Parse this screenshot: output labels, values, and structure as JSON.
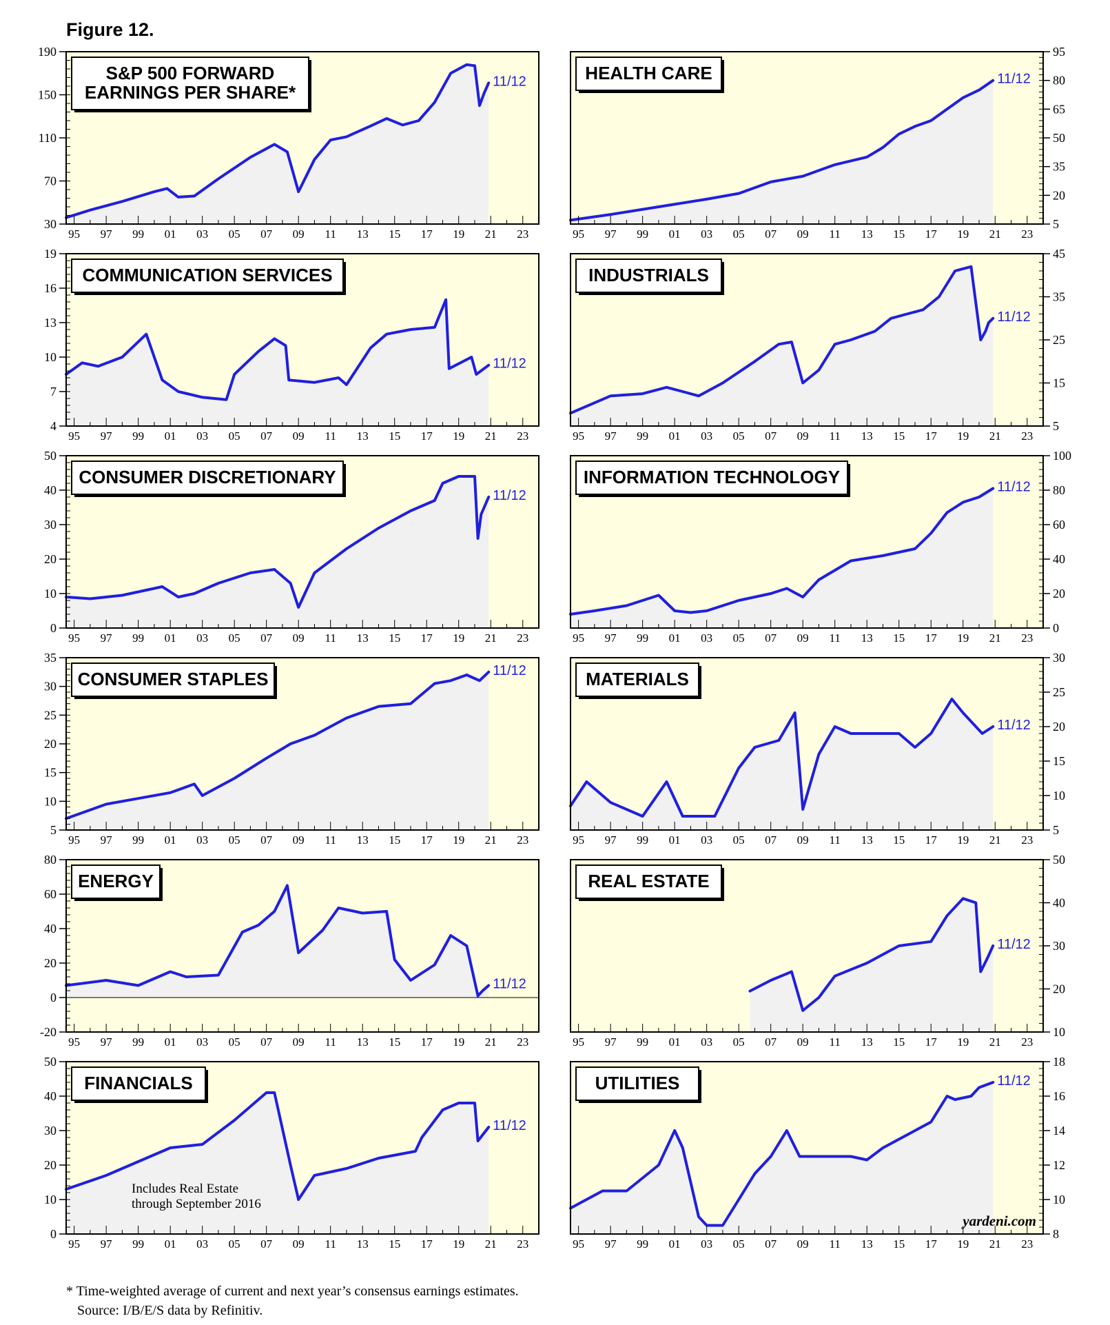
{
  "figure_label": "Figure 12.",
  "footnote": "* Time-weighted average of current and next year’s consensus earnings estimates.",
  "source": "Source: I/B/E/S data by Refinitiv.",
  "watermark": "yardeni.com",
  "colors": {
    "background": "#fffee0",
    "fill": "#f1f1f1",
    "line": "#1f1fe0",
    "label_text": "#1f1fe0"
  },
  "chart_data": [
    {
      "type": "line",
      "title": "S&P 500 FORWARD EARNINGS PER SHARE*",
      "title_lines": [
        "S&P 500 FORWARD",
        "EARNINGS PER SHARE*"
      ],
      "end_label": "11/12",
      "axis_side": "left",
      "ylim": [
        30,
        190
      ],
      "yticks": [
        "190",
        "150",
        "110",
        "70",
        "30"
      ],
      "xlim": [
        1994.5,
        2024
      ],
      "xticks": [
        "95",
        "97",
        "99",
        "01",
        "03",
        "05",
        "07",
        "09",
        "11",
        "13",
        "15",
        "17",
        "19",
        "21",
        "23"
      ],
      "x": [
        1994.5,
        1996,
        1998,
        2000,
        2000.8,
        2001.5,
        2002.5,
        2004,
        2006,
        2007.5,
        2008.3,
        2009,
        2010,
        2011,
        2012,
        2013.5,
        2014.5,
        2015.5,
        2016.5,
        2017.5,
        2018.5,
        2019.5,
        2020,
        2020.3,
        2020.6,
        2020.87
      ],
      "values": [
        36,
        43,
        51,
        60,
        63,
        55,
        56,
        72,
        92,
        104,
        97,
        60,
        90,
        108,
        111,
        121,
        128,
        122,
        126,
        143,
        170,
        178,
        177,
        140,
        152,
        161
      ]
    },
    {
      "type": "line",
      "title": "HEALTH CARE",
      "title_lines": [
        "HEALTH CARE"
      ],
      "end_label": "11/12",
      "axis_side": "right",
      "ylim": [
        5,
        95
      ],
      "yticks": [
        "95",
        "80",
        "65",
        "50",
        "35",
        "20",
        "5"
      ],
      "xlim": [
        1994.5,
        2024
      ],
      "xticks": [
        "95",
        "97",
        "99",
        "01",
        "03",
        "05",
        "07",
        "09",
        "11",
        "13",
        "15",
        "17",
        "19",
        "21",
        "23"
      ],
      "x": [
        1994.5,
        1997,
        2000,
        2003,
        2005,
        2007,
        2009,
        2011,
        2013,
        2014,
        2015,
        2016,
        2017,
        2018,
        2019,
        2020,
        2020.87
      ],
      "values": [
        7,
        10,
        14,
        18,
        21,
        27,
        30,
        36,
        40,
        45,
        52,
        56,
        59,
        65,
        71,
        75,
        80
      ]
    },
    {
      "type": "line",
      "title": "COMMUNICATION SERVICES",
      "title_lines": [
        "COMMUNICATION SERVICES"
      ],
      "end_label": "11/12",
      "axis_side": "left",
      "ylim": [
        4,
        19
      ],
      "yticks": [
        "19",
        "16",
        "13",
        "10",
        "7",
        "4"
      ],
      "xlim": [
        1994.5,
        2024
      ],
      "xticks": [
        "95",
        "97",
        "99",
        "01",
        "03",
        "05",
        "07",
        "09",
        "11",
        "13",
        "15",
        "17",
        "19",
        "21",
        "23"
      ],
      "x": [
        1994.5,
        1995.5,
        1996.5,
        1998,
        1999.5,
        2000.5,
        2001.5,
        2003,
        2004.5,
        2005,
        2006.5,
        2007.5,
        2008.2,
        2008.4,
        2010,
        2011.5,
        2012,
        2013.5,
        2014.5,
        2016,
        2017.5,
        2018.2,
        2018.4,
        2019.8,
        2020.1,
        2020.87
      ],
      "values": [
        8.5,
        9.5,
        9.2,
        10,
        12,
        8,
        7,
        6.5,
        6.3,
        8.5,
        10.5,
        11.6,
        11,
        8,
        7.8,
        8.2,
        7.6,
        10.8,
        12,
        12.4,
        12.6,
        15,
        9,
        10,
        8.5,
        9.3
      ]
    },
    {
      "type": "line",
      "title": "INDUSTRIALS",
      "title_lines": [
        "INDUSTRIALS"
      ],
      "end_label": "11/12",
      "axis_side": "right",
      "ylim": [
        5,
        45
      ],
      "yticks": [
        "45",
        "35",
        "25",
        "15",
        "5"
      ],
      "xlim": [
        1994.5,
        2024
      ],
      "xticks": [
        "95",
        "97",
        "99",
        "01",
        "03",
        "05",
        "07",
        "09",
        "11",
        "13",
        "15",
        "17",
        "19",
        "21",
        "23"
      ],
      "x": [
        1994.5,
        1997,
        1999,
        2000.5,
        2001.5,
        2002.5,
        2004,
        2006,
        2007.5,
        2008.3,
        2009,
        2010,
        2011,
        2012,
        2013.5,
        2014.5,
        2015.5,
        2016.5,
        2017.5,
        2018.5,
        2019.5,
        2020.1,
        2020.4,
        2020.6,
        2020.87
      ],
      "values": [
        8,
        12,
        12.5,
        14,
        13,
        12,
        15,
        20,
        24,
        24.5,
        15,
        18,
        24,
        25,
        27,
        30,
        31,
        32,
        35,
        41,
        42,
        25,
        27,
        29,
        30
      ]
    },
    {
      "type": "line",
      "title": "CONSUMER DISCRETIONARY",
      "title_lines": [
        "CONSUMER DISCRETIONARY"
      ],
      "end_label": "11/12",
      "axis_side": "left",
      "ylim": [
        0,
        50
      ],
      "yticks": [
        "50",
        "40",
        "30",
        "20",
        "10",
        "0"
      ],
      "xlim": [
        1994.5,
        2024
      ],
      "xticks": [
        "95",
        "97",
        "99",
        "01",
        "03",
        "05",
        "07",
        "09",
        "11",
        "13",
        "15",
        "17",
        "19",
        "21",
        "23"
      ],
      "x": [
        1994.5,
        1996,
        1998,
        2000.5,
        2001.5,
        2002.5,
        2004,
        2006,
        2007.5,
        2008.5,
        2009,
        2010,
        2012,
        2014,
        2016,
        2017.5,
        2018,
        2019,
        2020,
        2020.2,
        2020.4,
        2020.87
      ],
      "values": [
        9,
        8.5,
        9.5,
        12,
        9,
        10,
        13,
        16,
        17,
        13,
        6,
        16,
        23,
        29,
        34,
        37,
        42,
        44,
        44,
        26,
        33,
        38
      ]
    },
    {
      "type": "line",
      "title": "INFORMATION TECHNOLOGY",
      "title_lines": [
        "INFORMATION TECHNOLOGY"
      ],
      "end_label": "11/12",
      "axis_side": "right",
      "ylim": [
        0,
        100
      ],
      "yticks": [
        "100",
        "80",
        "60",
        "40",
        "20",
        "0"
      ],
      "xlim": [
        1994.5,
        2024
      ],
      "xticks": [
        "95",
        "97",
        "99",
        "01",
        "03",
        "05",
        "07",
        "09",
        "11",
        "13",
        "15",
        "17",
        "19",
        "21",
        "23"
      ],
      "x": [
        1994.5,
        1996,
        1998,
        2000,
        2001,
        2002,
        2003,
        2005,
        2007,
        2008,
        2009,
        2010,
        2012,
        2014,
        2016,
        2017,
        2018,
        2019,
        2020,
        2020.87
      ],
      "values": [
        8,
        10,
        13,
        19,
        10,
        9,
        10,
        16,
        20,
        23,
        18,
        28,
        39,
        42,
        46,
        55,
        67,
        73,
        76,
        81
      ]
    },
    {
      "type": "line",
      "title": "CONSUMER STAPLES",
      "title_lines": [
        "CONSUMER STAPLES"
      ],
      "end_label": "11/12",
      "axis_side": "left",
      "ylim": [
        5,
        35
      ],
      "yticks": [
        "35",
        "30",
        "25",
        "20",
        "15",
        "10",
        "5"
      ],
      "xlim": [
        1994.5,
        2024
      ],
      "xticks": [
        "95",
        "97",
        "99",
        "01",
        "03",
        "05",
        "07",
        "09",
        "11",
        "13",
        "15",
        "17",
        "19",
        "21",
        "23"
      ],
      "x": [
        1994.5,
        1997,
        1999,
        2001,
        2002.5,
        2003,
        2005,
        2007,
        2008.5,
        2010,
        2012,
        2014,
        2016,
        2017.5,
        2018.5,
        2019.5,
        2020.3,
        2020.87
      ],
      "values": [
        7,
        9.5,
        10.5,
        11.5,
        13,
        11,
        14,
        17.5,
        20,
        21.5,
        24.5,
        26.5,
        27,
        30.5,
        31,
        32,
        31,
        32.5
      ]
    },
    {
      "type": "line",
      "title": "MATERIALS",
      "title_lines": [
        "MATERIALS"
      ],
      "end_label": "11/12",
      "axis_side": "right",
      "ylim": [
        5,
        30
      ],
      "yticks": [
        "30",
        "25",
        "20",
        "15",
        "10",
        "5"
      ],
      "xlim": [
        1994.5,
        2024
      ],
      "xticks": [
        "95",
        "97",
        "99",
        "01",
        "03",
        "05",
        "07",
        "09",
        "11",
        "13",
        "15",
        "17",
        "19",
        "21",
        "23"
      ],
      "x": [
        1994.5,
        1995.5,
        1997,
        1999,
        2000.5,
        2001.5,
        2002.5,
        2003.5,
        2005,
        2006,
        2007.5,
        2008.5,
        2009,
        2010,
        2011,
        2012,
        2014,
        2015,
        2016,
        2017,
        2018.3,
        2019,
        2020.2,
        2020.87
      ],
      "values": [
        8.5,
        12,
        9,
        7,
        12,
        7,
        7,
        7,
        14,
        17,
        18,
        22,
        8,
        16,
        20,
        19,
        19,
        19,
        17,
        19,
        24,
        22,
        19,
        20
      ]
    },
    {
      "type": "line",
      "title": "ENERGY",
      "title_lines": [
        "ENERGY"
      ],
      "end_label": "11/12",
      "axis_side": "left",
      "ylim": [
        -20,
        80
      ],
      "yticks": [
        "80",
        "60",
        "40",
        "20",
        "0",
        "-20"
      ],
      "xlim": [
        1994.5,
        2024
      ],
      "xticks": [
        "95",
        "97",
        "99",
        "01",
        "03",
        "05",
        "07",
        "09",
        "11",
        "13",
        "15",
        "17",
        "19",
        "21",
        "23"
      ],
      "x": [
        1994.5,
        1997,
        1999,
        2001,
        2002,
        2004,
        2005.5,
        2006.5,
        2007.5,
        2008.3,
        2009,
        2010.5,
        2011.5,
        2013,
        2014.5,
        2015,
        2016,
        2017.5,
        2018.5,
        2019.5,
        2020.2,
        2020.5,
        2020.87
      ],
      "values": [
        7,
        10,
        7,
        15,
        12,
        13,
        38,
        42,
        50,
        65,
        26,
        39,
        52,
        49,
        50,
        22,
        10,
        19,
        36,
        30,
        1,
        4,
        7
      ]
    },
    {
      "type": "line",
      "title": "REAL ESTATE",
      "title_lines": [
        "REAL ESTATE"
      ],
      "end_label": "11/12",
      "axis_side": "right",
      "ylim": [
        10,
        50
      ],
      "yticks": [
        "50",
        "40",
        "30",
        "20",
        "10"
      ],
      "xlim": [
        1994.5,
        2024
      ],
      "xticks": [
        "95",
        "97",
        "99",
        "01",
        "03",
        "05",
        "07",
        "09",
        "11",
        "13",
        "15",
        "17",
        "19",
        "21",
        "23"
      ],
      "x": [
        2005.7,
        2007,
        2008.3,
        2009,
        2010,
        2011,
        2013,
        2015,
        2017,
        2018,
        2019,
        2019.8,
        2020.1,
        2020.5,
        2020.87
      ],
      "values": [
        19.5,
        22,
        24,
        15,
        18,
        23,
        26,
        30,
        31,
        37,
        41,
        40,
        24,
        27,
        30
      ]
    },
    {
      "type": "line",
      "title": "FINANCIALS",
      "title_lines": [
        "FINANCIALS"
      ],
      "end_label": "11/12",
      "axis_side": "left",
      "annotation": [
        "Includes Real Estate",
        "through September 2016"
      ],
      "ylim": [
        0,
        50
      ],
      "yticks": [
        "50",
        "40",
        "30",
        "20",
        "10",
        "0"
      ],
      "xlim": [
        1994.5,
        2024
      ],
      "xticks": [
        "95",
        "97",
        "99",
        "01",
        "03",
        "05",
        "07",
        "09",
        "11",
        "13",
        "15",
        "17",
        "19",
        "21",
        "23"
      ],
      "x": [
        1994.5,
        1997,
        1999,
        2001,
        2003,
        2005,
        2007,
        2007.5,
        2008.5,
        2009,
        2010,
        2012,
        2014,
        2016.3,
        2016.7,
        2018,
        2019,
        2020,
        2020.2,
        2020.87
      ],
      "values": [
        13,
        17,
        21,
        25,
        26,
        33,
        41,
        41,
        20,
        10,
        17,
        19,
        22,
        24,
        28,
        36,
        38,
        38,
        27,
        31
      ]
    },
    {
      "type": "line",
      "title": "UTILITIES",
      "title_lines": [
        "UTILITIES"
      ],
      "end_label": "11/12",
      "axis_side": "right",
      "ylim": [
        8,
        18
      ],
      "yticks": [
        "18",
        "16",
        "14",
        "12",
        "10",
        "8"
      ],
      "xlim": [
        1994.5,
        2024
      ],
      "xticks": [
        "95",
        "97",
        "99",
        "01",
        "03",
        "05",
        "07",
        "09",
        "11",
        "13",
        "15",
        "17",
        "19",
        "21",
        "23"
      ],
      "x": [
        1994.5,
        1996.5,
        1998,
        2000,
        2001,
        2001.5,
        2002.5,
        2003,
        2004,
        2005,
        2006,
        2007,
        2008,
        2008.8,
        2010,
        2012,
        2013,
        2014,
        2016,
        2017,
        2018,
        2018.5,
        2019.5,
        2020,
        2020.87
      ],
      "values": [
        9.5,
        10.5,
        10.5,
        12,
        14,
        13,
        9,
        8.5,
        8.5,
        10,
        11.5,
        12.5,
        14,
        12.5,
        12.5,
        12.5,
        12.3,
        13,
        14,
        14.5,
        16,
        15.8,
        16,
        16.5,
        16.8
      ]
    }
  ]
}
